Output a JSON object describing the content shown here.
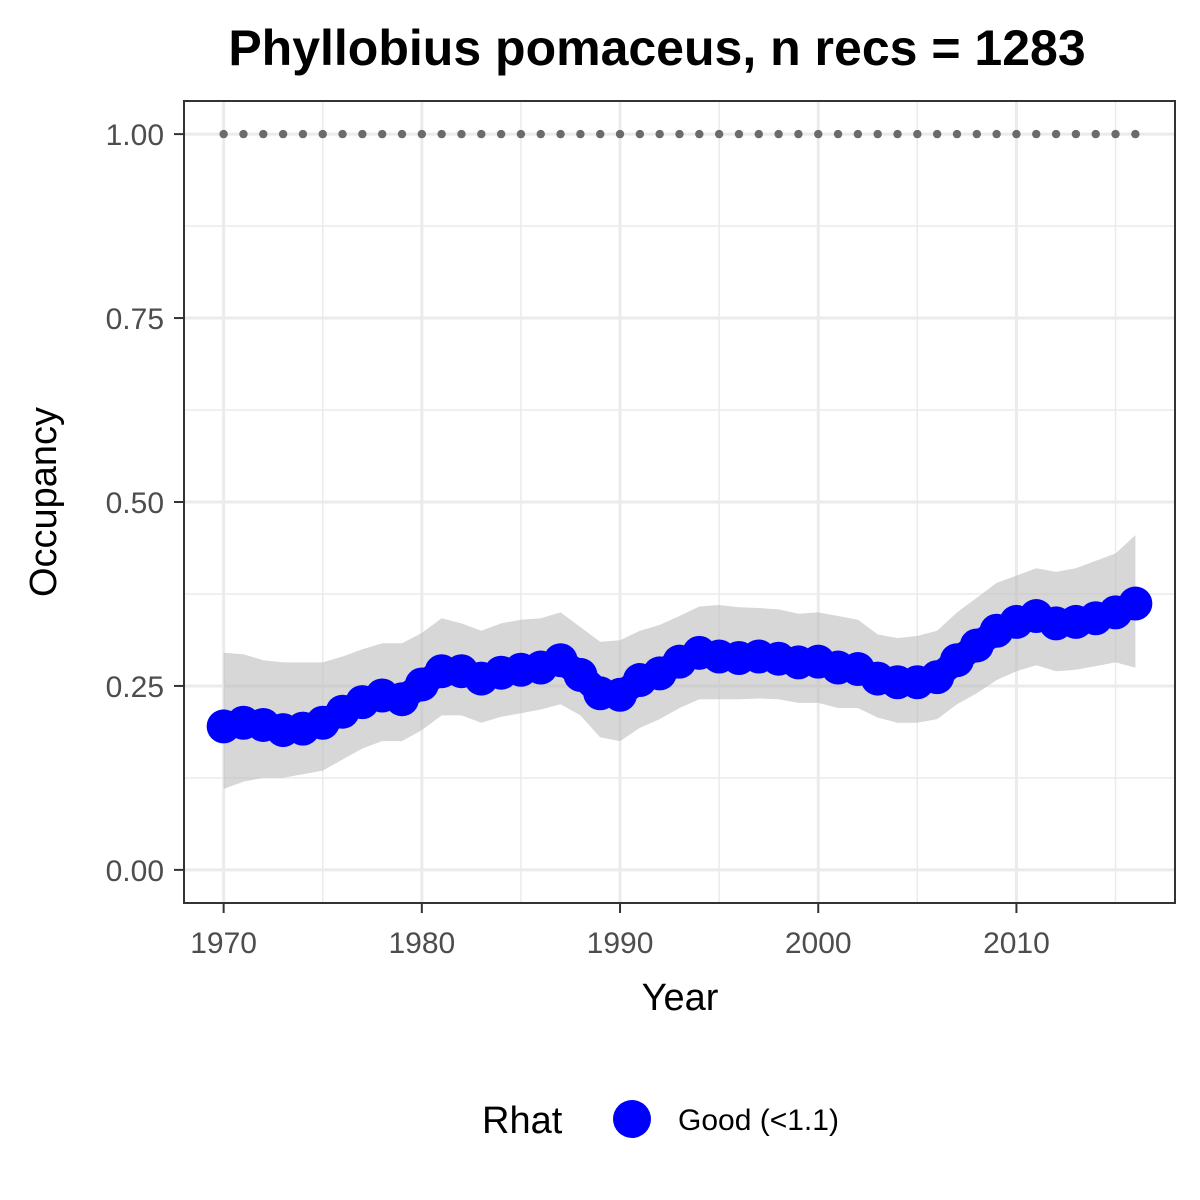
{
  "chart_data": {
    "type": "line",
    "title": "Phyllobius pomaceus, n recs = 1283",
    "xlabel": "Year",
    "ylabel": "Occupancy",
    "xlim": [
      1968,
      2018
    ],
    "ylim": [
      -0.045,
      1.045
    ],
    "x_ticks": [
      1970,
      1980,
      1990,
      2000,
      2010
    ],
    "y_ticks": [
      0.0,
      0.25,
      0.5,
      0.75,
      1.0
    ],
    "y_tick_labels": [
      "0.00",
      "0.25",
      "0.50",
      "0.75",
      "1.00"
    ],
    "grid": true,
    "legend_position": "bottom",
    "legend": {
      "title": "Rhat",
      "entries": [
        {
          "label": "Good (<1.1)",
          "color": "#0000ff"
        }
      ]
    },
    "colors": {
      "series": "#0000ff",
      "ribbon": "#bdbdbd",
      "reference": "#6b6b6b",
      "panel_border": "#333333",
      "grid": "#ebebeb"
    },
    "x": [
      1970,
      1971,
      1972,
      1973,
      1974,
      1975,
      1976,
      1977,
      1978,
      1979,
      1980,
      1981,
      1982,
      1983,
      1984,
      1985,
      1986,
      1987,
      1988,
      1989,
      1990,
      1991,
      1992,
      1993,
      1994,
      1995,
      1996,
      1997,
      1998,
      1999,
      2000,
      2001,
      2002,
      2003,
      2004,
      2005,
      2006,
      2007,
      2008,
      2009,
      2010,
      2011,
      2012,
      2013,
      2014,
      2015,
      2016
    ],
    "series": [
      {
        "values": [
          0.195,
          0.2,
          0.197,
          0.19,
          0.192,
          0.2,
          0.215,
          0.228,
          0.237,
          0.232,
          0.252,
          0.27,
          0.27,
          0.26,
          0.268,
          0.272,
          0.275,
          0.285,
          0.265,
          0.24,
          0.238,
          0.258,
          0.267,
          0.283,
          0.295,
          0.29,
          0.288,
          0.29,
          0.287,
          0.282,
          0.283,
          0.275,
          0.273,
          0.26,
          0.255,
          0.255,
          0.262,
          0.285,
          0.305,
          0.325,
          0.337,
          0.345,
          0.335,
          0.337,
          0.342,
          0.35,
          0.362
        ],
        "lower": [
          0.11,
          0.12,
          0.125,
          0.125,
          0.13,
          0.135,
          0.15,
          0.165,
          0.175,
          0.175,
          0.19,
          0.21,
          0.21,
          0.2,
          0.208,
          0.213,
          0.218,
          0.225,
          0.21,
          0.18,
          0.175,
          0.193,
          0.205,
          0.22,
          0.232,
          0.232,
          0.232,
          0.233,
          0.232,
          0.227,
          0.227,
          0.22,
          0.22,
          0.207,
          0.2,
          0.2,
          0.205,
          0.225,
          0.24,
          0.258,
          0.27,
          0.278,
          0.27,
          0.272,
          0.277,
          0.282,
          0.275
        ],
        "upper": [
          0.295,
          0.293,
          0.285,
          0.282,
          0.282,
          0.282,
          0.29,
          0.3,
          0.308,
          0.308,
          0.322,
          0.342,
          0.335,
          0.325,
          0.335,
          0.34,
          0.342,
          0.35,
          0.33,
          0.31,
          0.312,
          0.325,
          0.333,
          0.345,
          0.358,
          0.36,
          0.357,
          0.356,
          0.354,
          0.348,
          0.35,
          0.345,
          0.34,
          0.32,
          0.315,
          0.318,
          0.325,
          0.35,
          0.37,
          0.39,
          0.4,
          0.41,
          0.405,
          0.41,
          0.42,
          0.43,
          0.455
        ]
      }
    ],
    "reference_values": [
      1,
      1,
      1,
      1,
      1,
      1,
      1,
      1,
      1,
      1,
      1,
      1,
      1,
      1,
      1,
      1,
      1,
      1,
      1,
      1,
      1,
      1,
      1,
      1,
      1,
      1,
      1,
      1,
      1,
      1,
      1,
      1,
      1,
      1,
      1,
      1,
      1,
      1,
      1,
      1,
      1,
      1,
      1,
      1,
      1,
      1,
      1
    ]
  }
}
